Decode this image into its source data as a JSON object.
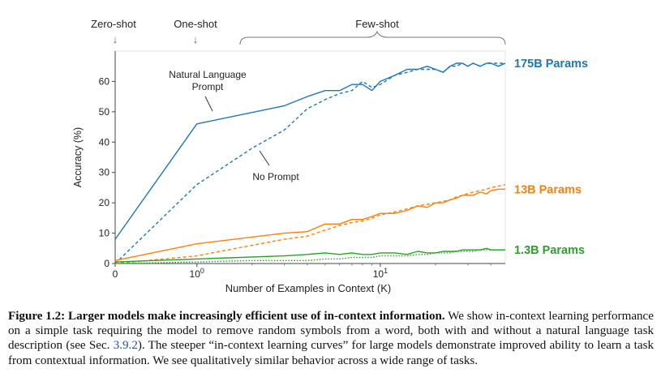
{
  "chart_data": {
    "type": "line",
    "title": "",
    "xlabel": "Number of Examples in Context  (K)",
    "ylabel": "Accuracy (%)",
    "ylim": [
      0,
      70
    ],
    "yticks": [
      0,
      10,
      20,
      30,
      40,
      50,
      60
    ],
    "xscale": "symlog",
    "xticks": [
      {
        "value": 0,
        "label": "0"
      },
      {
        "value": 1,
        "label": "10",
        "exp": "0"
      },
      {
        "value": 10,
        "label": "10",
        "exp": "1"
      }
    ],
    "grid": false,
    "top_annotations": {
      "zero_shot": "Zero-shot",
      "one_shot": "One-shot",
      "few_shot": "Few-shot",
      "arrow": "↓"
    },
    "line_annotations": {
      "natural_language_line1": "Natural Language",
      "natural_language_line2": "Prompt",
      "no_prompt": "No Prompt"
    },
    "series": [
      {
        "name": "175B Params",
        "label": "175B Params",
        "color": "#1f77b4",
        "style": "solid",
        "x": [
          0,
          1,
          3,
          4,
          5,
          6,
          7,
          8,
          9,
          10,
          12,
          14,
          16,
          18,
          20,
          22,
          24,
          26,
          28,
          30,
          32,
          35,
          38,
          40,
          44,
          48
        ],
        "y": [
          8,
          46,
          52,
          55,
          57,
          57,
          59,
          59,
          57,
          60,
          62,
          64,
          64,
          65,
          64,
          63,
          65,
          66,
          66,
          65,
          66,
          65,
          66,
          66,
          65,
          66
        ]
      },
      {
        "name": "175B No Prompt",
        "color": "#1f77b4",
        "style": "dashed",
        "x": [
          0,
          1,
          2,
          3,
          4,
          5,
          6,
          7,
          8,
          9,
          10,
          12,
          14,
          16,
          18,
          20,
          22,
          24,
          26,
          28,
          30,
          32,
          35,
          38,
          40,
          44,
          48
        ],
        "y": [
          0,
          26,
          38,
          44,
          51,
          54,
          56,
          57,
          60,
          58,
          59,
          62,
          63,
          64,
          64,
          64,
          63,
          65,
          65,
          66,
          65,
          66,
          65,
          66,
          66,
          66,
          66
        ]
      },
      {
        "name": "13B Params",
        "label": "13B Params",
        "color": "#ff7f0e",
        "style": "solid",
        "x": [
          0,
          1,
          3,
          4,
          5,
          6,
          7,
          8,
          9,
          10,
          12,
          14,
          16,
          18,
          20,
          22,
          24,
          26,
          28,
          30,
          32,
          35,
          38,
          40,
          44,
          48
        ],
        "y": [
          1,
          6.5,
          10,
          10.5,
          13,
          13,
          14.5,
          14.5,
          15.5,
          16.5,
          16.5,
          17.5,
          19,
          18.5,
          20,
          20,
          21,
          21.5,
          22.5,
          22.5,
          22.5,
          23.5,
          23,
          24,
          24.5,
          24.5
        ]
      },
      {
        "name": "13B No Prompt",
        "color": "#ff7f0e",
        "style": "dashed",
        "x": [
          0,
          1,
          2,
          3,
          4,
          5,
          6,
          7,
          8,
          9,
          10,
          12,
          14,
          16,
          18,
          20,
          22,
          24,
          26,
          28,
          30,
          32,
          35,
          38,
          40,
          44,
          48
        ],
        "y": [
          0,
          2.5,
          6,
          8,
          9,
          11,
          12.5,
          13.5,
          14,
          15,
          16,
          17,
          18,
          19,
          19.5,
          20,
          20.5,
          21,
          22,
          22.5,
          23,
          23.5,
          24,
          24.5,
          25,
          25.5,
          26
        ]
      },
      {
        "name": "1.3B Params",
        "label": "1.3B Params",
        "color": "#2ca02c",
        "style": "solid",
        "x": [
          0,
          1,
          3,
          4,
          5,
          6,
          7,
          8,
          9,
          10,
          12,
          14,
          16,
          18,
          20,
          22,
          24,
          26,
          28,
          30,
          32,
          35,
          38,
          40,
          44,
          48
        ],
        "y": [
          0.5,
          1.5,
          2.5,
          3,
          3.5,
          3,
          3.5,
          3,
          3,
          3.5,
          3.5,
          3,
          4,
          3.5,
          3.5,
          4,
          4,
          4,
          4.5,
          4.5,
          4.5,
          4.5,
          5,
          4.5,
          4.5,
          4.5
        ]
      },
      {
        "name": "1.3B No Prompt",
        "color": "#2ca02c",
        "style": "dotted",
        "x": [
          0,
          1,
          2,
          3,
          4,
          5,
          6,
          7,
          8,
          9,
          10,
          12,
          14,
          16,
          18,
          20,
          22,
          24,
          26,
          28,
          30,
          32,
          35,
          38,
          40,
          44,
          48
        ],
        "y": [
          0,
          0.5,
          1,
          1,
          1,
          1.5,
          1.5,
          2,
          2,
          2,
          2.5,
          2.5,
          2.5,
          3,
          3,
          3.5,
          3.5,
          3.5,
          4,
          4,
          4,
          4,
          4.5,
          4.5,
          4.5,
          4.5,
          4.5
        ]
      }
    ]
  },
  "caption": {
    "label": "Figure 1.2:",
    "bold_text": "Larger models make increasingly efficient use of in-context information.",
    "text_before_ref": "We show in-context learning performance on a simple task requiring the model to remove random symbols from a word, both with and without a natural language task description (see Sec.",
    "ref": "3.9.2",
    "text_after_ref": "). The steeper “in-context learning curves” for large models demonstrate improved ability to learn a task from contextual information. We see qualitatively similar behavior across a wide range of tasks."
  }
}
